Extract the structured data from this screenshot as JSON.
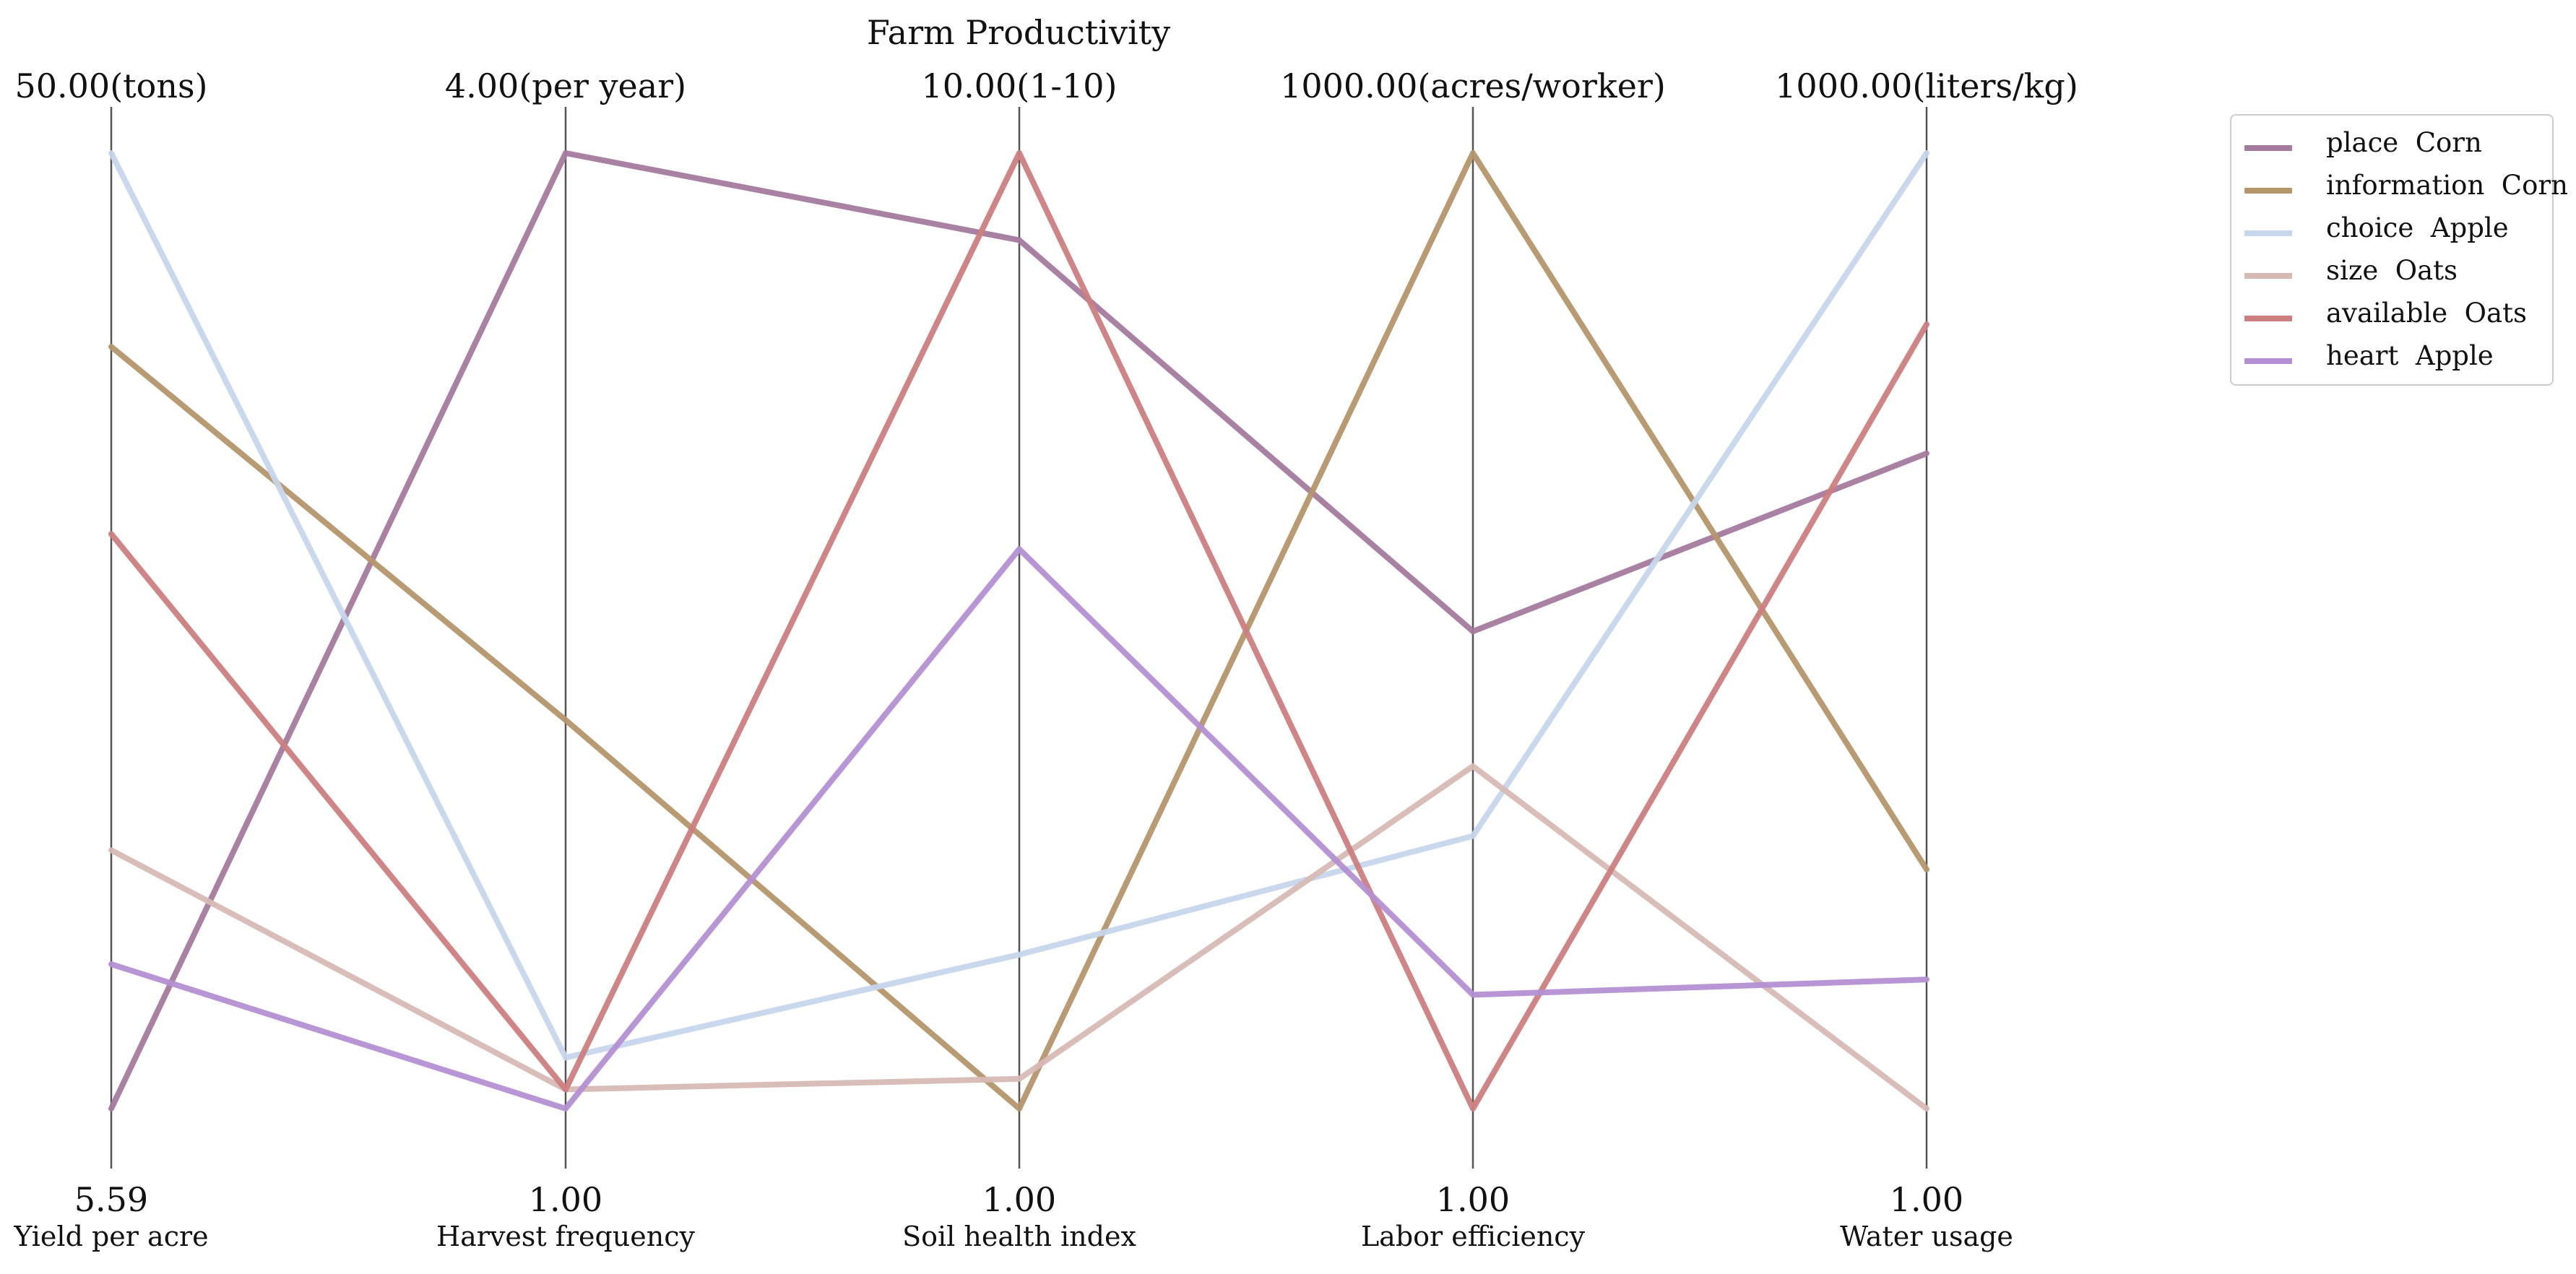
{
  "chart_data": {
    "type": "parallel_coordinates",
    "title": "Farm Productivity",
    "axes": [
      {
        "label": "Yield per acre",
        "min": 5.59,
        "max": 50.0,
        "min_label": "5.59",
        "max_label": "50.00(tons)"
      },
      {
        "label": "Harvest frequency",
        "min": 1.0,
        "max": 4.0,
        "min_label": "1.00",
        "max_label": "4.00(per year)"
      },
      {
        "label": "Soil health index",
        "min": 1.0,
        "max": 10.0,
        "min_label": "1.00",
        "max_label": "10.00(1-10)"
      },
      {
        "label": "Labor efficiency",
        "min": 1.0,
        "max": 1000.0,
        "min_label": "1.00",
        "max_label": "1000.00(acres/worker)"
      },
      {
        "label": "Water usage",
        "min": 1.0,
        "max": 1000.0,
        "min_label": "1.00",
        "max_label": "1000.00(liters/kg)"
      }
    ],
    "series": [
      {
        "name": "place  Corn",
        "color": "#a47a9e",
        "values": [
          5.59,
          4.0,
          9.18,
          500.0,
          686.0
        ]
      },
      {
        "name": "information  Corn",
        "color": "#b4966a",
        "values": [
          41.0,
          2.22,
          1.0,
          1000.0,
          251.0
        ]
      },
      {
        "name": "choice  Apple",
        "color": "#c6d6ec",
        "values": [
          50.0,
          1.16,
          2.45,
          286.0,
          1000.0
        ]
      },
      {
        "name": "size  Oats",
        "color": "#d7b9b4",
        "values": [
          17.6,
          1.06,
          1.28,
          359.0,
          1.0
        ]
      },
      {
        "name": "available  Oats",
        "color": "#cc7e80",
        "values": [
          32.3,
          1.06,
          10.0,
          1.0,
          821.0
        ]
      },
      {
        "name": "heart  Apple",
        "color": "#b48fd2",
        "values": [
          12.3,
          1.0,
          6.27,
          120.0,
          136.0
        ]
      }
    ],
    "legend_position": "top-right",
    "grid": false
  }
}
